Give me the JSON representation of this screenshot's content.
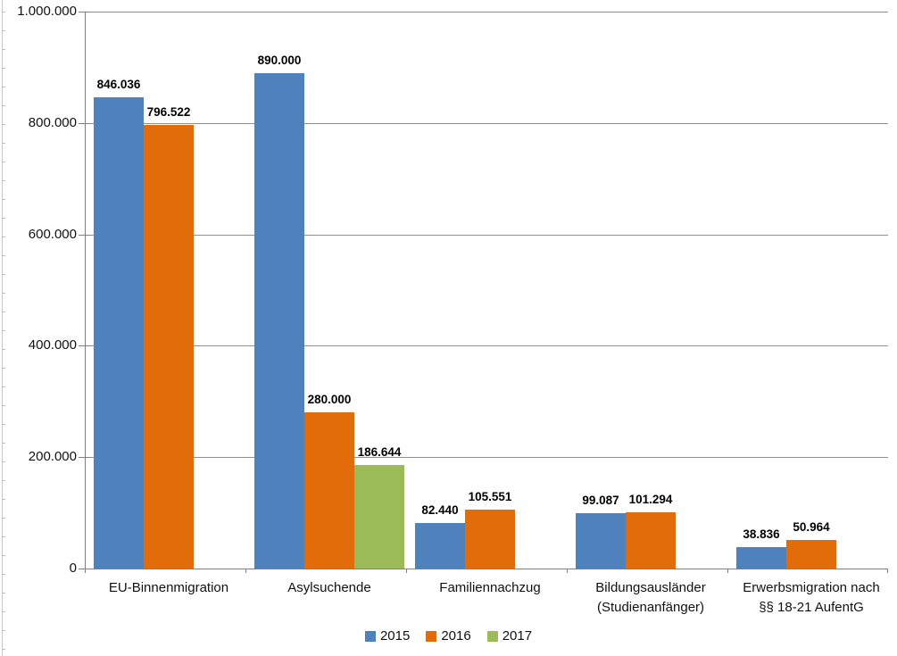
{
  "chart_data": {
    "type": "bar",
    "title": "",
    "xlabel": "",
    "ylabel": "",
    "categories": [
      "EU-Binnenmigration",
      "Asylsuchende",
      "Familiennachzug",
      "Bildungsausländer\n(Studienanfänger)",
      "Erwerbsmigration nach\n§§ 18-21 AufentG"
    ],
    "series": [
      {
        "name": "2015",
        "color": "#4F81BD",
        "values": [
          846036,
          890000,
          82440,
          99087,
          38836
        ],
        "value_labels": [
          "846.036",
          "890.000",
          "82.440",
          "99.087",
          "38.836"
        ]
      },
      {
        "name": "2016",
        "color": "#E36C0A",
        "values": [
          796522,
          280000,
          105551,
          101294,
          50964
        ],
        "value_labels": [
          "796.522",
          "280.000",
          "105.551",
          "101.294",
          "50.964"
        ]
      },
      {
        "name": "2017",
        "color": "#9BBB59",
        "values": [
          null,
          186644,
          null,
          null,
          null
        ],
        "value_labels": [
          null,
          "186.644",
          null,
          null,
          null
        ]
      }
    ],
    "y_axis": {
      "min": 0,
      "max": 1000000,
      "tick_values": [
        0,
        200000,
        400000,
        600000,
        800000,
        1000000
      ],
      "tick_labels": [
        "0",
        "200.000",
        "400.000",
        "600.000",
        "800.000",
        "1.000.000"
      ]
    },
    "grid": true,
    "legend_position": "bottom",
    "legend_entries": [
      "2015",
      "2016",
      "2017"
    ]
  }
}
